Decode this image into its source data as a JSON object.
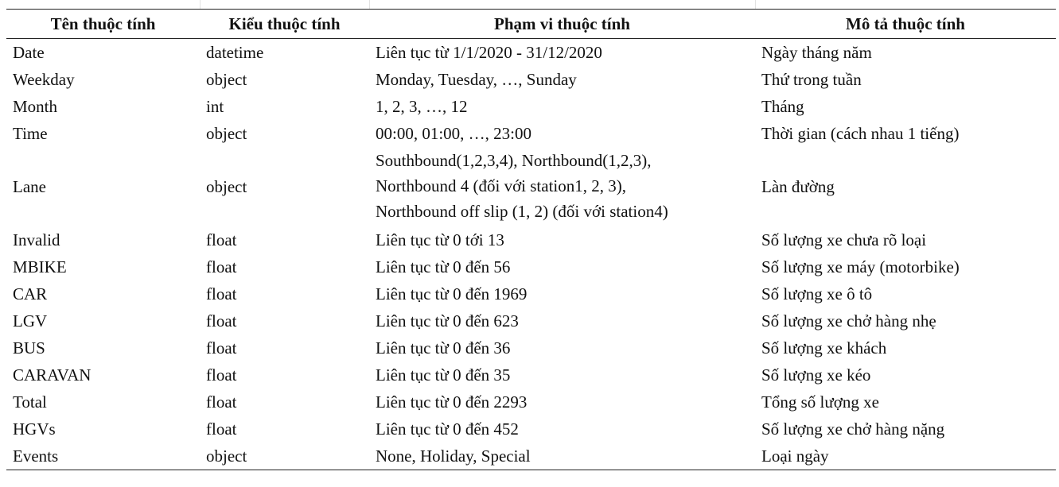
{
  "table": {
    "headers": [
      "Tên thuộc tính",
      "Kiểu thuộc tính",
      "Phạm vi thuộc tính",
      "Mô tả thuộc tính"
    ],
    "rows": [
      {
        "name": "Date",
        "type": "datetime",
        "range": [
          "Liên tục từ 1/1/2020 - 31/12/2020"
        ],
        "desc": "Ngày tháng năm"
      },
      {
        "name": "Weekday",
        "type": "object",
        "range": [
          "Monday, Tuesday, …, Sunday"
        ],
        "desc": "Thứ trong tuần"
      },
      {
        "name": "Month",
        "type": "int",
        "range": [
          "1, 2, 3, …, 12"
        ],
        "desc": "Tháng"
      },
      {
        "name": "Time",
        "type": "object",
        "range": [
          "00:00, 01:00, …, 23:00"
        ],
        "desc": "Thời gian (cách nhau 1 tiếng)"
      },
      {
        "name": "Lane",
        "type": "object",
        "range": [
          "Southbound(1,2,3,4), Northbound(1,2,3),",
          "Northbound 4 (đối với station1, 2, 3),",
          "Northbound off slip (1, 2) (đối với station4)"
        ],
        "desc": "Làn đường"
      },
      {
        "name": "Invalid",
        "type": "float",
        "range": [
          "Liên tục từ 0 tới 13"
        ],
        "desc": "Số lượng xe chưa rõ loại"
      },
      {
        "name": "MBIKE",
        "type": "float",
        "range": [
          "Liên tục từ 0 đến 56"
        ],
        "desc": "Số lượng xe máy (motorbike)"
      },
      {
        "name": "CAR",
        "type": "float",
        "range": [
          "Liên tục từ 0 đến 1969"
        ],
        "desc": "Số lượng xe ô tô"
      },
      {
        "name": "LGV",
        "type": "float",
        "range": [
          "Liên tục từ 0 đến 623"
        ],
        "desc": "Số lượng xe chở hàng nhẹ"
      },
      {
        "name": "BUS",
        "type": "float",
        "range": [
          "Liên tục từ 0 đến 36"
        ],
        "desc": "Số lượng xe khách"
      },
      {
        "name": "CARAVAN",
        "type": "float",
        "range": [
          "Liên tục từ 0 đến 35"
        ],
        "desc": "Số lượng xe kéo"
      },
      {
        "name": "Total",
        "type": "float",
        "range": [
          "Liên tục từ 0 đến 2293"
        ],
        "desc": "Tổng số lượng xe"
      },
      {
        "name": "HGVs",
        "type": "float",
        "range": [
          "Liên tục từ 0 đến 452"
        ],
        "desc": "Số lượng xe chở hàng nặng"
      },
      {
        "name": "Events",
        "type": "object",
        "range": [
          "None, Holiday, Special"
        ],
        "desc": "Loại ngày"
      }
    ]
  }
}
